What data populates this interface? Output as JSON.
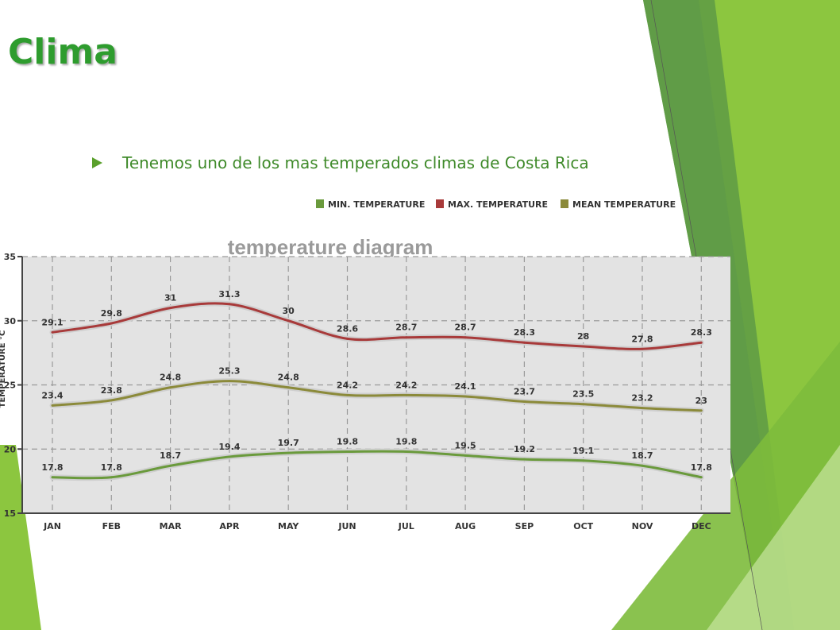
{
  "slide": {
    "title": "Clima",
    "bullet": "Tenemos uno de los mas temperados climas de Costa Rica"
  },
  "colors": {
    "title": "#2e9c2e",
    "bullet_text": "#3f8a2a",
    "min_series": "#6a9a3c",
    "max_series": "#a83a3a",
    "mean_series": "#8b8a3a",
    "plot_background": "#e3e3e3",
    "accent_green": "#8cc63f"
  },
  "chart_data": {
    "type": "line",
    "title": "temperature diagram",
    "ylabel": "TEMPERATURE °C",
    "ylim": [
      15,
      35
    ],
    "yticks": [
      15,
      20,
      25,
      30,
      35
    ],
    "grid": true,
    "legend_position": "top-right",
    "categories": [
      "JAN",
      "FEB",
      "MAR",
      "APR",
      "MAY",
      "JUN",
      "JUL",
      "AUG",
      "SEP",
      "OCT",
      "NOV",
      "DEC"
    ],
    "series": [
      {
        "name": "MIN. TEMPERATURE",
        "color": "#6a9a3c",
        "values": [
          17.8,
          17.8,
          18.7,
          19.4,
          19.7,
          19.8,
          19.8,
          19.5,
          19.2,
          19.1,
          18.7,
          17.8
        ]
      },
      {
        "name": "MAX. TEMPERATURE",
        "color": "#a83a3a",
        "values": [
          29.1,
          29.8,
          31,
          31.3,
          30,
          28.6,
          28.7,
          28.7,
          28.3,
          28,
          27.8,
          28.3
        ]
      },
      {
        "name": "MEAN TEMPERATURE",
        "color": "#8b8a3a",
        "values": [
          23.4,
          23.8,
          24.8,
          25.3,
          24.8,
          24.2,
          24.2,
          24.1,
          23.7,
          23.5,
          23.2,
          23
        ]
      }
    ]
  }
}
